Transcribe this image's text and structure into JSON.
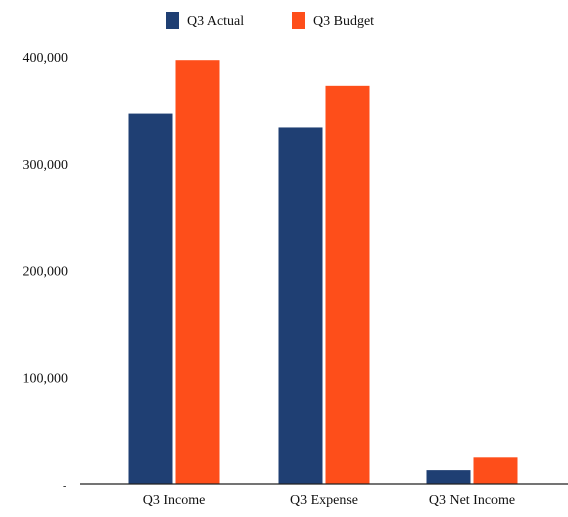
{
  "chart_data": {
    "type": "bar",
    "title": "",
    "xlabel": "",
    "ylabel": "",
    "categories": [
      "Q3 Income",
      "Q3 Expense",
      "Q3 Net Income"
    ],
    "series": [
      {
        "name": "Q3 Actual",
        "color": "#1f3f73",
        "values": [
          347000,
          334000,
          13000
        ]
      },
      {
        "name": "Q3 Budget",
        "color": "#fe4e1a",
        "values": [
          397000,
          373000,
          25000
        ]
      }
    ],
    "ylim": [
      0,
      400000
    ],
    "yticks": [
      {
        "value": 100000,
        "label": "100,000"
      },
      {
        "value": 200000,
        "label": "200,000"
      },
      {
        "value": 300000,
        "label": "300,000"
      },
      {
        "value": 400000,
        "label": "400,000"
      }
    ],
    "grid": false,
    "legend_position": "top-center"
  }
}
